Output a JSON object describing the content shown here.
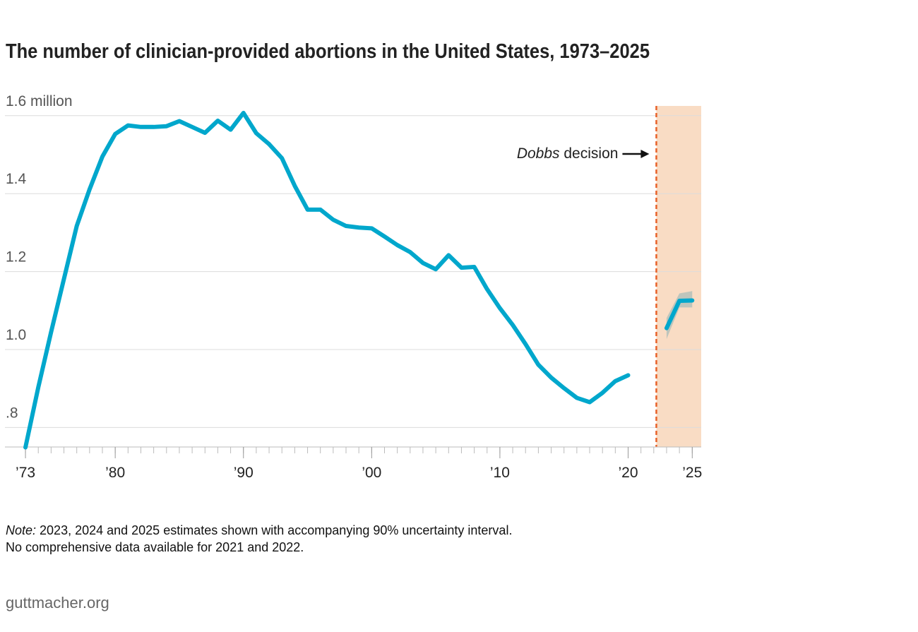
{
  "chart_data": {
    "type": "line",
    "title": "The number of clinician-provided abortions in the United States, 1973–2025",
    "x": [
      1973,
      1974,
      1975,
      1976,
      1977,
      1978,
      1979,
      1980,
      1981,
      1982,
      1983,
      1984,
      1985,
      1986,
      1987,
      1988,
      1989,
      1990,
      1991,
      1992,
      1993,
      1994,
      1995,
      1996,
      1997,
      1998,
      1999,
      2000,
      2001,
      2002,
      2003,
      2004,
      2005,
      2006,
      2007,
      2008,
      2009,
      2010,
      2011,
      2012,
      2013,
      2014,
      2015,
      2016,
      2017,
      2018,
      2019,
      2020,
      2021,
      2022,
      2023,
      2024,
      2025
    ],
    "series": [
      {
        "color": "#00a7cc",
        "values": [
          0.749,
          0.903,
          1.045,
          1.181,
          1.317,
          1.411,
          1.495,
          1.553,
          1.575,
          1.571,
          1.571,
          1.573,
          1.586,
          1.571,
          1.556,
          1.587,
          1.564,
          1.607,
          1.555,
          1.527,
          1.491,
          1.42,
          1.359,
          1.359,
          1.333,
          1.317,
          1.313,
          1.311,
          1.29,
          1.268,
          1.25,
          1.222,
          1.206,
          1.242,
          1.21,
          1.212,
          1.155,
          1.106,
          1.063,
          1.014,
          0.961,
          0.928,
          0.901,
          0.876,
          0.865,
          0.889,
          0.919,
          0.934,
          null,
          null,
          1.055,
          1.125,
          1.126
        ]
      }
    ],
    "interval": {
      "color": "#a9bdb9",
      "low": [
        null,
        null,
        null,
        null,
        null,
        null,
        null,
        null,
        null,
        null,
        null,
        null,
        null,
        null,
        null,
        null,
        null,
        null,
        null,
        null,
        null,
        null,
        null,
        null,
        null,
        null,
        null,
        null,
        null,
        null,
        null,
        null,
        null,
        null,
        null,
        null,
        null,
        null,
        null,
        null,
        null,
        null,
        null,
        null,
        null,
        null,
        null,
        null,
        null,
        null,
        1.027,
        1.108,
        1.108
      ],
      "high": [
        null,
        null,
        null,
        null,
        null,
        null,
        null,
        null,
        null,
        null,
        null,
        null,
        null,
        null,
        null,
        null,
        null,
        null,
        null,
        null,
        null,
        null,
        null,
        null,
        null,
        null,
        null,
        null,
        null,
        null,
        null,
        null,
        null,
        null,
        null,
        null,
        null,
        null,
        null,
        null,
        null,
        null,
        null,
        null,
        null,
        null,
        null,
        null,
        null,
        null,
        1.081,
        1.144,
        1.15
      ]
    },
    "xlim": [
      1971.4,
      2025.7
    ],
    "xticks": [
      {
        "value": 1973,
        "label": "’73"
      },
      {
        "value": 1980,
        "label": "’80"
      },
      {
        "value": 1990,
        "label": "’90"
      },
      {
        "value": 2000,
        "label": "’00"
      },
      {
        "value": 2010,
        "label": "’10"
      },
      {
        "value": 2020,
        "label": "’20"
      },
      {
        "value": 2025,
        "label": "’25"
      }
    ],
    "ylim": [
      0.75,
      1.625
    ],
    "yticks": [
      {
        "value": 1.6,
        "label": "1.6 million"
      },
      1.4,
      1.2,
      {
        "value": 1,
        "label": "1.0"
      },
      {
        "value": 0.8,
        "label": ".8"
      }
    ],
    "grid": true,
    "event": {
      "x": 2022.2,
      "color": "#e8622a",
      "shade_color": "#f9dcc4",
      "label_italic": "Dobbs",
      "label": "decision"
    },
    "note_lead": "Note:",
    "notes": [
      "2023, 2024 and 2025 estimates shown with accompanying 90% uncertainty interval.",
      "No comprehensive data available for 2021 and 2022."
    ],
    "source": "guttmacher.org"
  }
}
